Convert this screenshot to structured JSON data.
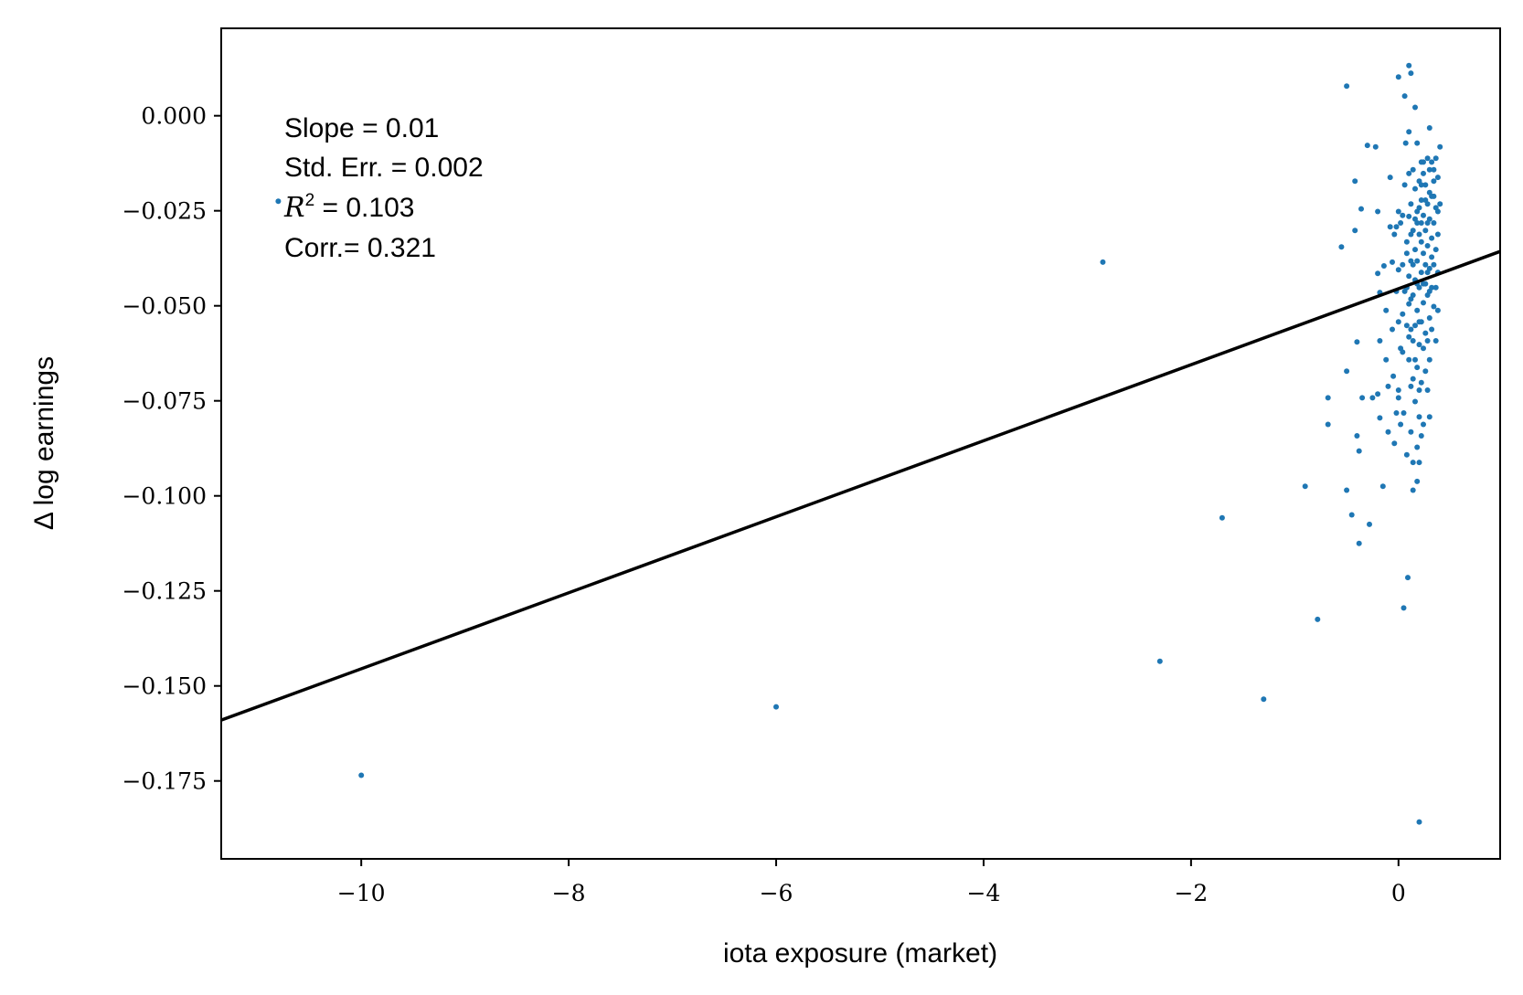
{
  "chart_data": {
    "type": "scatter",
    "xlabel": "iota exposure (market)",
    "ylabel": "Δ log earnings",
    "xlim": [
      -11.35,
      0.98
    ],
    "ylim": [
      -0.1955,
      0.023
    ],
    "x_ticks": [
      -10,
      -8,
      -6,
      -4,
      -2,
      0
    ],
    "x_tick_labels": [
      "−10",
      "−8",
      "−6",
      "−4",
      "−2",
      "0"
    ],
    "y_ticks": [
      0.0,
      -0.025,
      -0.05,
      -0.075,
      -0.1,
      -0.125,
      -0.15,
      -0.175
    ],
    "y_tick_labels": [
      "0.000",
      "−0.025",
      "−0.050",
      "−0.075",
      "−0.100",
      "−0.125",
      "−0.150",
      "−0.175"
    ],
    "grid": false,
    "point_color": "#1f77b4",
    "line_color": "#000000",
    "fit_line": {
      "slope": 0.01,
      "intercept": -0.0455
    },
    "annotations": {
      "slope": "Slope = 0.01",
      "std_err": "Std. Err. = 0.002",
      "r2_symbol": "R",
      "r2_sup": "2",
      "r2_value": " = 0.103",
      "corr": "Corr.= 0.321"
    },
    "points": [
      [
        -10.8,
        -0.0225
      ],
      [
        -10.0,
        -0.1735
      ],
      [
        -6.0,
        -0.1555
      ],
      [
        -2.85,
        -0.0385
      ],
      [
        -2.3,
        -0.1435
      ],
      [
        -1.7,
        -0.1058
      ],
      [
        -1.3,
        -0.1535
      ],
      [
        -0.9,
        -0.0975
      ],
      [
        -0.78,
        -0.1325
      ],
      [
        -0.68,
        -0.0742
      ],
      [
        -0.68,
        -0.0812
      ],
      [
        -0.5,
        0.0078
      ],
      [
        -0.55,
        -0.0345
      ],
      [
        -0.5,
        -0.0672
      ],
      [
        -0.5,
        -0.0985
      ],
      [
        -0.45,
        -0.105
      ],
      [
        -0.42,
        -0.0172
      ],
      [
        -0.42,
        -0.0302
      ],
      [
        -0.4,
        -0.0595
      ],
      [
        -0.4,
        -0.0842
      ],
      [
        -0.38,
        -0.0882
      ],
      [
        -0.38,
        -0.1125
      ],
      [
        -0.36,
        -0.0245
      ],
      [
        -0.35,
        -0.0742
      ],
      [
        -0.3,
        -0.0078
      ],
      [
        -0.28,
        -0.1075
      ],
      [
        -0.25,
        -0.0742
      ],
      [
        -0.22,
        -0.0082
      ],
      [
        -0.2,
        -0.0252
      ],
      [
        -0.2,
        -0.0415
      ],
      [
        -0.2,
        -0.0732
      ],
      [
        -0.18,
        -0.0465
      ],
      [
        -0.18,
        -0.0592
      ],
      [
        -0.18,
        -0.0795
      ],
      [
        -0.15,
        -0.0975
      ],
      [
        -0.14,
        -0.0395
      ],
      [
        -0.12,
        -0.0512
      ],
      [
        -0.12,
        -0.0642
      ],
      [
        -0.1,
        -0.0712
      ],
      [
        -0.1,
        -0.0832
      ],
      [
        -0.08,
        -0.0162
      ],
      [
        -0.06,
        -0.0385
      ],
      [
        -0.06,
        -0.0562
      ],
      [
        -0.05,
        -0.0685
      ],
      [
        -0.04,
        -0.0862
      ],
      [
        -0.02,
        -0.0292
      ],
      [
        -0.02,
        -0.0462
      ],
      [
        0.0,
        0.0102
      ],
      [
        0.0,
        -0.0405
      ],
      [
        0.0,
        -0.0542
      ],
      [
        0.0,
        -0.0742
      ],
      [
        0.02,
        -0.0282
      ],
      [
        0.02,
        -0.0612
      ],
      [
        0.04,
        -0.0392
      ],
      [
        0.04,
        -0.0522
      ],
      [
        0.05,
        -0.0782
      ],
      [
        0.05,
        -0.1295
      ],
      [
        0.06,
        0.0052
      ],
      [
        0.07,
        -0.0072
      ],
      [
        0.08,
        -0.0362
      ],
      [
        0.08,
        -0.0452
      ],
      [
        0.08,
        -0.0892
      ],
      [
        0.09,
        -0.1215
      ],
      [
        0.1,
        0.0132
      ],
      [
        0.1,
        -0.0042
      ],
      [
        0.1,
        -0.0152
      ],
      [
        0.1,
        -0.0265
      ],
      [
        0.1,
        -0.0495
      ],
      [
        0.1,
        -0.0642
      ],
      [
        0.12,
        0.0112
      ],
      [
        0.12,
        -0.0232
      ],
      [
        0.12,
        -0.0382
      ],
      [
        0.12,
        -0.0562
      ],
      [
        0.12,
        -0.0712
      ],
      [
        0.12,
        -0.0832
      ],
      [
        0.14,
        -0.0142
      ],
      [
        0.14,
        -0.0302
      ],
      [
        0.14,
        -0.0472
      ],
      [
        0.14,
        -0.0592
      ],
      [
        0.14,
        -0.0912
      ],
      [
        0.14,
        -0.0985
      ],
      [
        0.16,
        0.0022
      ],
      [
        0.16,
        -0.0192
      ],
      [
        0.16,
        -0.0352
      ],
      [
        0.16,
        -0.0432
      ],
      [
        0.16,
        -0.0552
      ],
      [
        0.16,
        -0.0752
      ],
      [
        0.18,
        -0.0072
      ],
      [
        0.18,
        -0.0252
      ],
      [
        0.18,
        -0.0382
      ],
      [
        0.18,
        -0.0512
      ],
      [
        0.18,
        -0.0662
      ],
      [
        0.18,
        -0.0872
      ],
      [
        0.18,
        -0.0962
      ],
      [
        0.2,
        -0.0172
      ],
      [
        0.2,
        -0.0312
      ],
      [
        0.2,
        -0.0452
      ],
      [
        0.2,
        -0.0602
      ],
      [
        0.2,
        -0.0792
      ],
      [
        0.2,
        -0.0912
      ],
      [
        0.2,
        -0.1858
      ],
      [
        0.22,
        -0.0122
      ],
      [
        0.22,
        -0.0222
      ],
      [
        0.22,
        -0.0282
      ],
      [
        0.22,
        -0.0412
      ],
      [
        0.22,
        -0.0542
      ],
      [
        0.22,
        -0.0702
      ],
      [
        0.22,
        -0.0842
      ],
      [
        0.24,
        -0.0152
      ],
      [
        0.24,
        -0.0262
      ],
      [
        0.24,
        -0.0362
      ],
      [
        0.24,
        -0.0492
      ],
      [
        0.24,
        -0.0612
      ],
      [
        0.24,
        -0.0812
      ],
      [
        0.26,
        -0.0182
      ],
      [
        0.26,
        -0.0302
      ],
      [
        0.26,
        -0.0442
      ],
      [
        0.26,
        -0.0572
      ],
      [
        0.26,
        -0.0672
      ],
      [
        0.28,
        -0.0112
      ],
      [
        0.28,
        -0.0232
      ],
      [
        0.28,
        -0.0342
      ],
      [
        0.28,
        -0.0472
      ],
      [
        0.28,
        -0.0592
      ],
      [
        0.28,
        -0.0722
      ],
      [
        0.3,
        -0.0032
      ],
      [
        0.3,
        -0.0142
      ],
      [
        0.3,
        -0.0272
      ],
      [
        0.3,
        -0.0402
      ],
      [
        0.3,
        -0.0532
      ],
      [
        0.3,
        -0.0642
      ],
      [
        0.3,
        -0.0792
      ],
      [
        0.32,
        -0.0122
      ],
      [
        0.32,
        -0.0212
      ],
      [
        0.32,
        -0.0322
      ],
      [
        0.32,
        -0.0452
      ],
      [
        0.32,
        -0.0562
      ],
      [
        0.34,
        -0.0172
      ],
      [
        0.34,
        -0.0282
      ],
      [
        0.34,
        -0.0392
      ],
      [
        0.34,
        -0.0502
      ],
      [
        0.36,
        -0.0112
      ],
      [
        0.36,
        -0.0242
      ],
      [
        0.36,
        -0.0352
      ],
      [
        0.36,
        -0.0592
      ],
      [
        0.38,
        -0.0162
      ],
      [
        0.38,
        -0.0312
      ],
      [
        0.38,
        -0.0412
      ],
      [
        0.38,
        -0.0512
      ],
      [
        0.4,
        -0.0082
      ],
      [
        0.4,
        -0.0232
      ],
      [
        0.06,
        -0.0182
      ],
      [
        0.04,
        -0.0262
      ],
      [
        0.08,
        -0.0332
      ],
      [
        0.1,
        -0.0422
      ],
      [
        0.12,
        -0.0482
      ],
      [
        0.16,
        -0.0642
      ],
      [
        0.2,
        -0.0722
      ],
      [
        0.24,
        -0.0442
      ],
      [
        0.28,
        -0.0412
      ],
      [
        0.32,
        -0.0372
      ],
      [
        0.26,
        -0.0222
      ],
      [
        0.22,
        -0.0182
      ],
      [
        0.18,
        -0.0282
      ],
      [
        0.14,
        -0.0392
      ],
      [
        0.3,
        -0.0202
      ],
      [
        0.34,
        -0.0142
      ],
      [
        0.36,
        -0.0452
      ],
      [
        0.2,
        -0.0542
      ],
      [
        0.24,
        -0.0122
      ],
      [
        0.28,
        -0.0282
      ],
      [
        -0.08,
        -0.0292
      ],
      [
        -0.04,
        -0.0312
      ],
      [
        0.0,
        -0.0252
      ],
      [
        0.06,
        -0.0462
      ],
      [
        0.1,
        -0.0582
      ],
      [
        0.14,
        -0.0692
      ],
      [
        0.18,
        -0.0442
      ],
      [
        0.22,
        -0.0332
      ],
      [
        0.26,
        -0.0392
      ],
      [
        0.3,
        -0.0462
      ],
      [
        0.34,
        -0.0212
      ],
      [
        0.38,
        -0.0252
      ],
      [
        0.2,
        -0.0242
      ],
      [
        0.16,
        -0.0272
      ],
      [
        0.12,
        -0.0312
      ],
      [
        0.08,
        -0.0552
      ],
      [
        0.04,
        -0.0622
      ],
      [
        0.0,
        -0.0722
      ],
      [
        -0.02,
        -0.0782
      ],
      [
        0.02,
        -0.0812
      ]
    ]
  }
}
